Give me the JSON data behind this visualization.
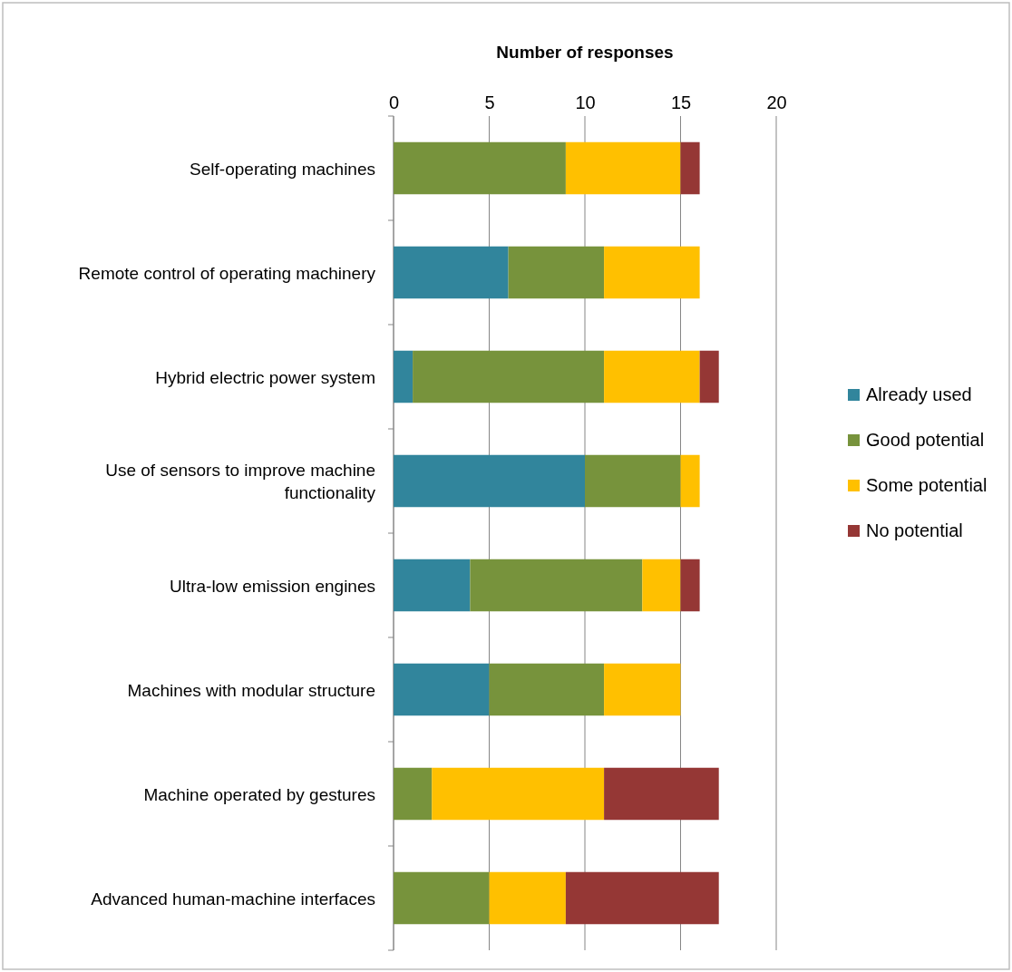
{
  "chart_data": {
    "type": "bar",
    "orientation": "horizontal",
    "stacked": true,
    "xlabel": "Number of responses",
    "categories": [
      "Self-operating machines",
      "Remote control of operating machinery",
      "Hybrid electric power system",
      "Use of sensors to improve machine functionality",
      "Ultra-low emission engines",
      "Machines with modular structure",
      "Machine operated by gestures",
      "Advanced human-machine interfaces"
    ],
    "series": [
      {
        "name": "Already used",
        "color": "#31859c",
        "values": [
          0,
          6,
          1,
          10,
          4,
          5,
          0,
          0
        ]
      },
      {
        "name": "Good potential",
        "color": "#77933c",
        "values": [
          9,
          5,
          10,
          5,
          9,
          6,
          2,
          5
        ]
      },
      {
        "name": "Some potential",
        "color": "#ffc000",
        "values": [
          6,
          5,
          5,
          1,
          2,
          4,
          9,
          4
        ]
      },
      {
        "name": "No potential",
        "color": "#953735",
        "values": [
          1,
          0,
          1,
          0,
          1,
          0,
          6,
          8
        ]
      }
    ],
    "xlim": [
      0,
      20
    ],
    "xticks": [
      0,
      5,
      10,
      15,
      20
    ],
    "grid": "x",
    "legend": "right"
  }
}
